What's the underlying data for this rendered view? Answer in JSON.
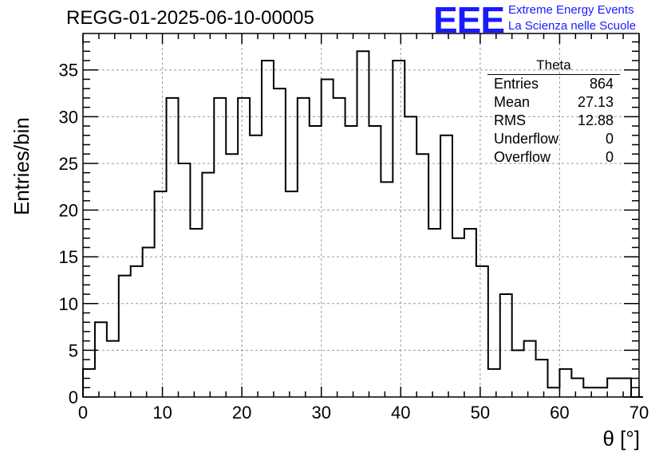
{
  "header": {
    "title": "REGG-01-2025-06-10-00005",
    "logo_text": "EEE",
    "org_line1": "Extreme Energy Events",
    "org_line2": "La Scienza nelle Scuole"
  },
  "stats_box": {
    "title": "Theta",
    "rows": [
      {
        "label": "Entries",
        "value": "864"
      },
      {
        "label": "Mean",
        "value": "27.13"
      },
      {
        "label": "RMS",
        "value": "12.88"
      },
      {
        "label": "Underflow",
        "value": "0"
      },
      {
        "label": "Overflow",
        "value": "0"
      }
    ]
  },
  "colors": {
    "line": "#000000",
    "grid": "#9a9a9a",
    "logo": "#1a1aff"
  },
  "chart_data": {
    "type": "histogram",
    "xlabel": "θ [°]",
    "ylabel": "Entries/bin",
    "xlim": [
      0,
      70
    ],
    "ylim": [
      0,
      38.9
    ],
    "grid": true,
    "bin_width": 1.5,
    "bin_start": 0,
    "values": [
      3,
      8,
      6,
      13,
      14,
      16,
      22,
      32,
      25,
      18,
      24,
      32,
      26,
      32,
      28,
      36,
      33,
      22,
      32,
      29,
      34,
      32,
      29,
      37,
      29,
      23,
      36,
      30,
      26,
      18,
      28,
      17,
      18,
      14,
      3,
      11,
      5,
      6,
      4,
      1,
      3,
      2,
      1,
      1,
      2,
      2,
      0
    ],
    "x_ticks": [
      0,
      10,
      20,
      30,
      40,
      50,
      60,
      70
    ],
    "y_ticks": [
      0,
      5,
      10,
      15,
      20,
      25,
      30,
      35
    ]
  }
}
